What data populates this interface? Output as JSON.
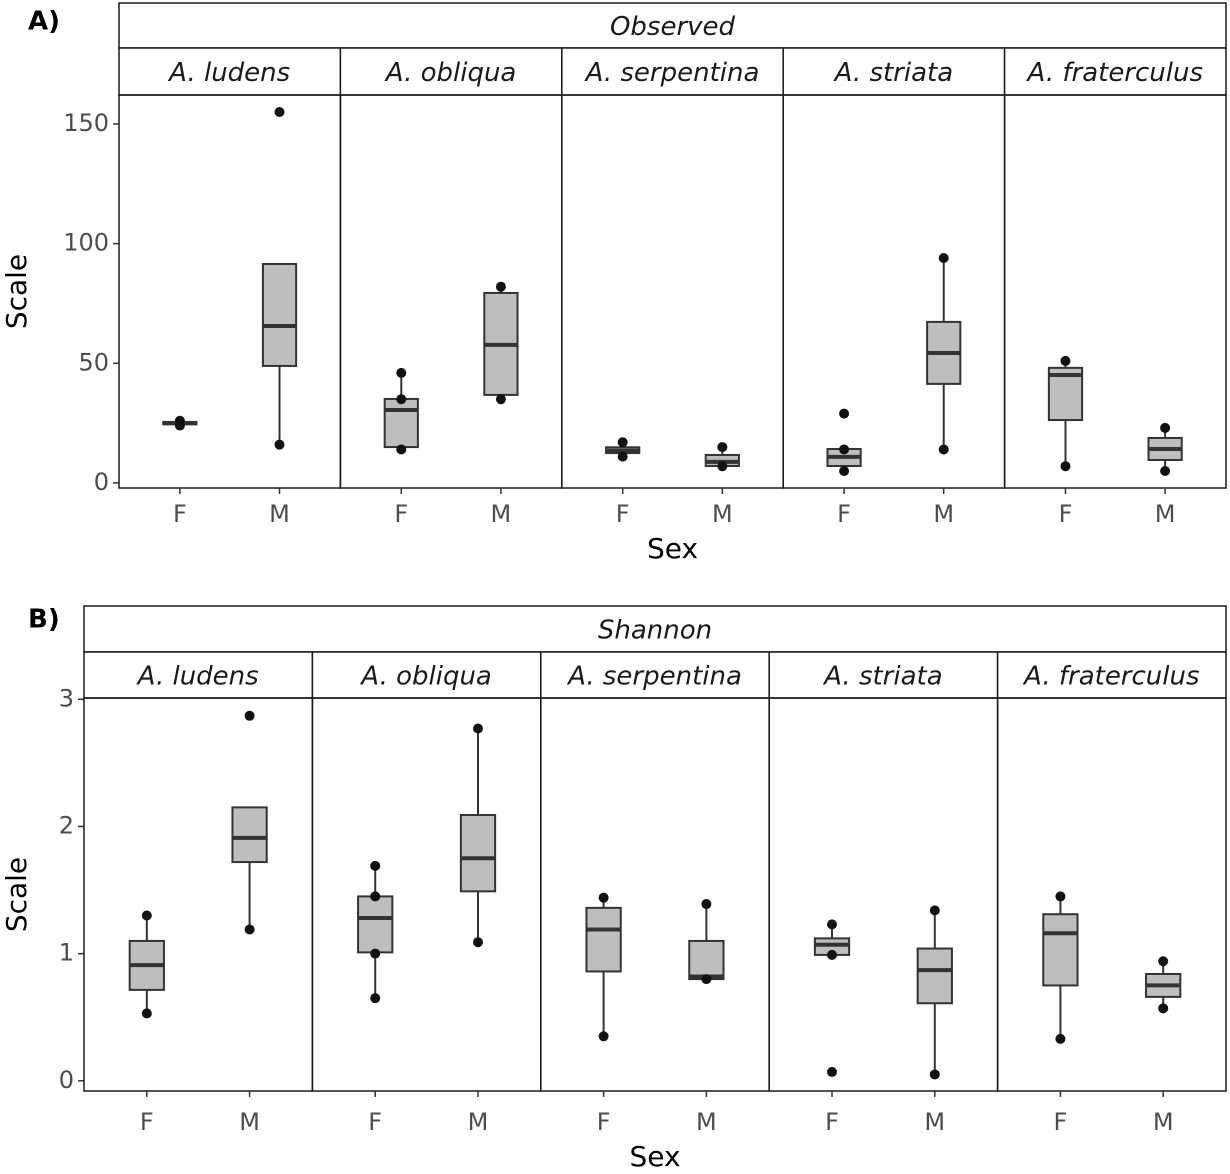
{
  "chart_data": [
    {
      "type": "box",
      "panel_label": "A)",
      "strip_title": "Observed",
      "xlabel": "Sex",
      "ylabel": "Scale",
      "ylim": [
        -2.1,
        162.1
      ],
      "yticks": [
        0,
        50,
        100,
        150
      ],
      "categories": [
        "F",
        "M"
      ],
      "box_color": "#bebebe",
      "facets": [
        {
          "name": "A. ludens",
          "boxes": [
            {
              "whislo": 24,
              "q1": 24.5,
              "med": 25,
              "q3": 25.5,
              "whishi": 26,
              "points": [
                24,
                26
              ]
            },
            {
              "whislo": 16.3,
              "q1": 48.9,
              "med": 65.6,
              "q3": 91.5,
              "whishi": 91.5,
              "points": [
                16,
                155
              ]
            }
          ]
        },
        {
          "name": "A. obliqua",
          "boxes": [
            {
              "whislo": 14.2,
              "q1": 15,
              "med": 30.5,
              "q3": 35.1,
              "whishi": 46.4,
              "points": [
                14,
                35,
                46
              ]
            },
            {
              "whislo": 35.1,
              "q1": 36.8,
              "med": 57.7,
              "q3": 79.4,
              "whishi": 81.9,
              "points": [
                35,
                82
              ]
            }
          ]
        },
        {
          "name": "A. serpentina",
          "boxes": [
            {
              "whislo": 11.3,
              "q1": 12.5,
              "med": 13.5,
              "q3": 14.9,
              "whishi": 17.5,
              "points": [
                11,
                17
              ]
            },
            {
              "whislo": 7,
              "q1": 7.1,
              "med": 8.8,
              "q3": 11.7,
              "whishi": 15,
              "points": [
                7,
                15
              ]
            }
          ]
        },
        {
          "name": "A. striata",
          "boxes": [
            {
              "whislo": 5.4,
              "q1": 7.1,
              "med": 10.9,
              "q3": 14.2,
              "whishi": 14.8,
              "points": [
                5,
                14,
                29
              ]
            },
            {
              "whislo": 14.2,
              "q1": 41.4,
              "med": 54.3,
              "q3": 67.3,
              "whishi": 94,
              "points": [
                14,
                94
              ]
            }
          ]
        },
        {
          "name": "A. fraterculus",
          "boxes": [
            {
              "whislo": 7.1,
              "q1": 26.3,
              "med": 45.1,
              "q3": 48.1,
              "whishi": 51,
              "points": [
                7,
                51
              ]
            },
            {
              "whislo": 5.4,
              "q1": 9.6,
              "med": 14.2,
              "q3": 18.8,
              "whishi": 23,
              "points": [
                5,
                23
              ]
            }
          ]
        }
      ]
    },
    {
      "type": "box",
      "panel_label": "B)",
      "strip_title": "Shannon",
      "xlabel": "Sex",
      "ylabel": "Scale",
      "ylim": [
        -0.08,
        3.01
      ],
      "yticks": [
        0,
        1,
        2,
        3
      ],
      "categories": [
        "F",
        "M"
      ],
      "box_color": "#bebebe",
      "facets": [
        {
          "name": "A. ludens",
          "boxes": [
            {
              "whislo": 0.53,
              "q1": 0.715,
              "med": 0.91,
              "q3": 1.1,
              "whishi": 1.3,
              "points": [
                0.53,
                1.3
              ]
            },
            {
              "whislo": 1.19,
              "q1": 1.72,
              "med": 1.91,
              "q3": 2.15,
              "whishi": 2.15,
              "points": [
                1.19,
                2.87
              ]
            }
          ]
        },
        {
          "name": "A. obliqua",
          "boxes": [
            {
              "whislo": 0.65,
              "q1": 1.01,
              "med": 1.28,
              "q3": 1.45,
              "whishi": 1.69,
              "points": [
                0.65,
                1.0,
                1.45,
                1.69
              ]
            },
            {
              "whislo": 1.09,
              "q1": 1.49,
              "med": 1.75,
              "q3": 2.09,
              "whishi": 2.77,
              "points": [
                1.09,
                2.77
              ]
            }
          ]
        },
        {
          "name": "A. serpentina",
          "boxes": [
            {
              "whislo": 0.35,
              "q1": 0.86,
              "med": 1.19,
              "q3": 1.36,
              "whishi": 1.44,
              "points": [
                0.35,
                1.44
              ]
            },
            {
              "whislo": 0.8,
              "q1": 0.8,
              "med": 0.82,
              "q3": 1.1,
              "whishi": 1.39,
              "points": [
                0.8,
                1.39
              ]
            }
          ]
        },
        {
          "name": "A. striata",
          "boxes": [
            {
              "whislo": 0.99,
              "q1": 0.99,
              "med": 1.07,
              "q3": 1.12,
              "whishi": 1.23,
              "points": [
                0.07,
                0.99,
                1.23
              ]
            },
            {
              "whislo": 0.05,
              "q1": 0.61,
              "med": 0.87,
              "q3": 1.04,
              "whishi": 1.34,
              "points": [
                0.05,
                1.34
              ]
            }
          ]
        },
        {
          "name": "A. fraterculus",
          "boxes": [
            {
              "whislo": 0.33,
              "q1": 0.75,
              "med": 1.16,
              "q3": 1.31,
              "whishi": 1.45,
              "points": [
                0.33,
                1.45
              ]
            },
            {
              "whislo": 0.57,
              "q1": 0.66,
              "med": 0.75,
              "q3": 0.84,
              "whishi": 0.94,
              "points": [
                0.57,
                0.94
              ]
            }
          ]
        }
      ]
    }
  ]
}
